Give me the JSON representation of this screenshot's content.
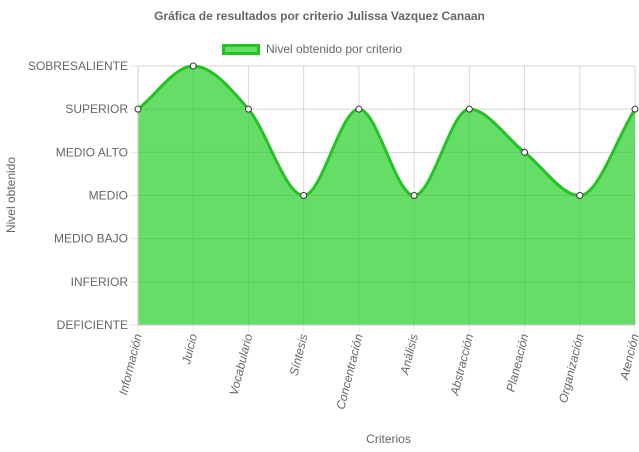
{
  "chart_data": {
    "type": "area",
    "title": "Gráfica de resultados por criterio Julissa Vazquez Canaan",
    "xlabel": "Criterios",
    "ylabel": "Nivel obtenido",
    "categories": [
      "Información",
      "Juicio",
      "Vocabulario",
      "Síntesis",
      "Concentración",
      "Análisis",
      "Abstracción",
      "Planeación",
      "Organización",
      "Atención"
    ],
    "y_levels": [
      "DEFICIENTE",
      "INFERIOR",
      "MEDIO BAJO",
      "MEDIO",
      "MEDIO ALTO",
      "SUPERIOR",
      "SOBRESALIENTE"
    ],
    "series": [
      {
        "name": "Nivel obtenido por criterio",
        "values": [
          5,
          6,
          5,
          3,
          5,
          3,
          5,
          4,
          3,
          5
        ]
      }
    ],
    "ylim": [
      0,
      6
    ],
    "grid": true,
    "legend_position": "top",
    "colors": {
      "fill": "#66dd66",
      "line": "#22c322",
      "grid": "#e6e6e6",
      "text": "#666666"
    }
  }
}
